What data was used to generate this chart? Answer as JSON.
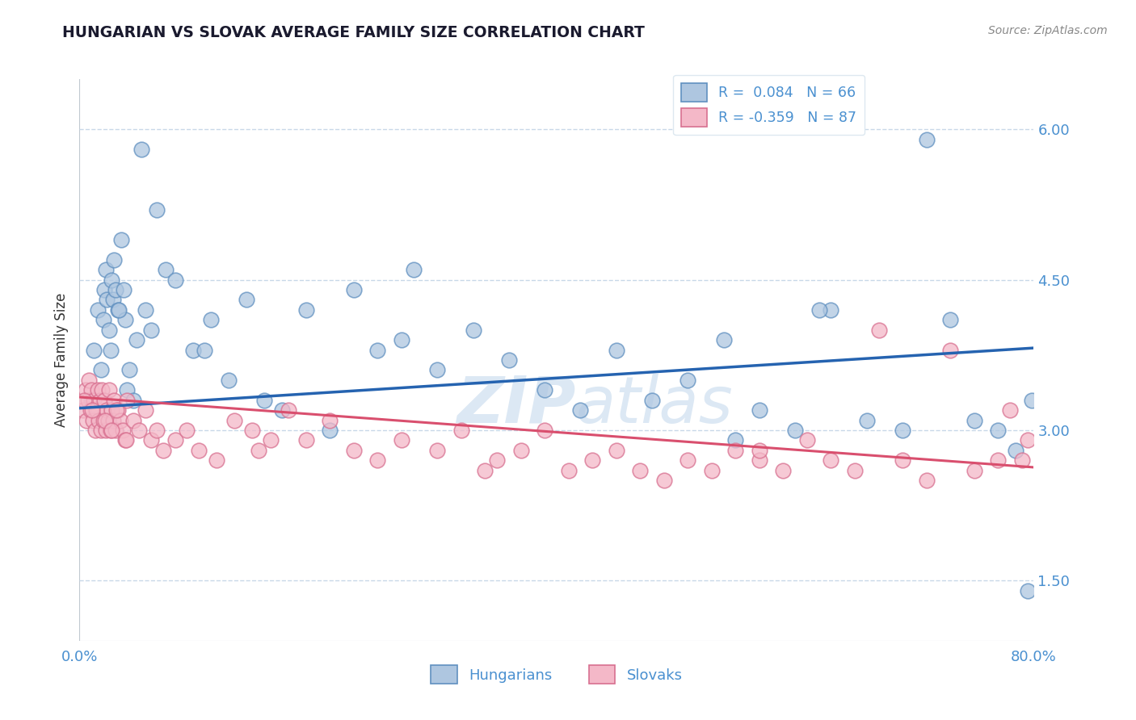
{
  "title": "HUNGARIAN VS SLOVAK AVERAGE FAMILY SIZE CORRELATION CHART",
  "source": "Source: ZipAtlas.com",
  "ylabel": "Average Family Size",
  "xmin": 0.0,
  "xmax": 80.0,
  "ymin": 0.9,
  "ymax": 6.5,
  "yticks": [
    1.5,
    3.0,
    4.5,
    6.0
  ],
  "hungarian_R": 0.084,
  "hungarian_N": 66,
  "slovak_R": -0.359,
  "slovak_N": 87,
  "blue_face_color": "#aec6e0",
  "blue_edge_color": "#6090c0",
  "blue_line_color": "#2563b0",
  "pink_face_color": "#f4b8c8",
  "pink_edge_color": "#d87090",
  "pink_line_color": "#d94f6e",
  "title_color": "#1a1a2e",
  "axis_color": "#4a90d0",
  "grid_color": "#c8d8e8",
  "source_color": "#888888",
  "watermark_color": "#dce8f4",
  "ylabel_color": "#333333",
  "legend_label_color": "#4a90d0",
  "hun_blue_line_start_y": 3.22,
  "hun_blue_line_end_y": 3.82,
  "slo_pink_line_start_y": 3.33,
  "slo_pink_line_end_y": 2.63,
  "hungarian_x": [
    1.0,
    1.2,
    1.5,
    1.8,
    2.0,
    2.1,
    2.2,
    2.3,
    2.5,
    2.6,
    2.7,
    2.8,
    2.9,
    3.0,
    3.2,
    3.5,
    3.8,
    4.2,
    4.8,
    5.2,
    5.5,
    6.0,
    6.5,
    7.2,
    8.0,
    9.5,
    11.0,
    12.5,
    14.0,
    15.5,
    17.0,
    19.0,
    21.0,
    23.0,
    25.0,
    27.0,
    30.0,
    33.0,
    36.0,
    39.0,
    42.0,
    45.0,
    48.0,
    51.0,
    54.0,
    57.0,
    60.0,
    63.0,
    66.0,
    69.0,
    71.0,
    73.0,
    75.0,
    77.0,
    78.5,
    79.5,
    3.3,
    3.7,
    4.0,
    4.5,
    2.4,
    10.5,
    28.0,
    55.0,
    79.8,
    62.0
  ],
  "hungarian_y": [
    3.3,
    3.8,
    4.2,
    3.6,
    4.1,
    4.4,
    4.6,
    4.3,
    4.0,
    3.8,
    4.5,
    4.3,
    4.7,
    4.4,
    4.2,
    4.9,
    4.1,
    3.6,
    3.9,
    5.8,
    4.2,
    4.0,
    5.2,
    4.6,
    4.5,
    3.8,
    4.1,
    3.5,
    4.3,
    3.3,
    3.2,
    4.2,
    3.0,
    4.4,
    3.8,
    3.9,
    3.6,
    4.0,
    3.7,
    3.4,
    3.2,
    3.8,
    3.3,
    3.5,
    3.9,
    3.2,
    3.0,
    4.2,
    3.1,
    3.0,
    5.9,
    4.1,
    3.1,
    3.0,
    2.8,
    1.4,
    4.2,
    4.4,
    3.4,
    3.3,
    3.1,
    3.8,
    4.6,
    2.9,
    3.3,
    4.2
  ],
  "slovak_x": [
    0.3,
    0.5,
    0.6,
    0.7,
    0.8,
    0.9,
    1.0,
    1.1,
    1.2,
    1.3,
    1.4,
    1.5,
    1.6,
    1.7,
    1.8,
    1.9,
    2.0,
    2.1,
    2.2,
    2.3,
    2.4,
    2.5,
    2.6,
    2.7,
    2.8,
    2.9,
    3.0,
    3.2,
    3.4,
    3.6,
    3.8,
    4.0,
    4.5,
    5.0,
    5.5,
    6.0,
    7.0,
    8.0,
    9.0,
    10.0,
    11.5,
    13.0,
    14.5,
    16.0,
    17.5,
    19.0,
    21.0,
    23.0,
    25.0,
    27.0,
    30.0,
    32.0,
    35.0,
    37.0,
    39.0,
    41.0,
    43.0,
    45.0,
    47.0,
    49.0,
    51.0,
    53.0,
    55.0,
    57.0,
    59.0,
    61.0,
    63.0,
    65.0,
    67.0,
    69.0,
    71.0,
    73.0,
    75.0,
    77.0,
    78.0,
    79.0,
    0.4,
    1.05,
    2.15,
    2.65,
    3.1,
    3.9,
    6.5,
    15.0,
    34.0,
    57.0,
    79.5
  ],
  "slovak_y": [
    3.2,
    3.4,
    3.1,
    3.3,
    3.5,
    3.2,
    3.4,
    3.1,
    3.3,
    3.0,
    3.2,
    3.4,
    3.1,
    3.3,
    3.0,
    3.4,
    3.1,
    3.3,
    3.0,
    3.2,
    3.1,
    3.4,
    3.0,
    3.2,
    3.1,
    3.3,
    3.0,
    3.2,
    3.1,
    3.0,
    2.9,
    3.3,
    3.1,
    3.0,
    3.2,
    2.9,
    2.8,
    2.9,
    3.0,
    2.8,
    2.7,
    3.1,
    3.0,
    2.9,
    3.2,
    2.9,
    3.1,
    2.8,
    2.7,
    2.9,
    2.8,
    3.0,
    2.7,
    2.8,
    3.0,
    2.6,
    2.7,
    2.8,
    2.6,
    2.5,
    2.7,
    2.6,
    2.8,
    2.7,
    2.6,
    2.9,
    2.7,
    2.6,
    4.0,
    2.7,
    2.5,
    3.8,
    2.6,
    2.7,
    3.2,
    2.7,
    3.3,
    3.2,
    3.1,
    3.0,
    3.2,
    2.9,
    3.0,
    2.8,
    2.6,
    2.8,
    2.9
  ]
}
